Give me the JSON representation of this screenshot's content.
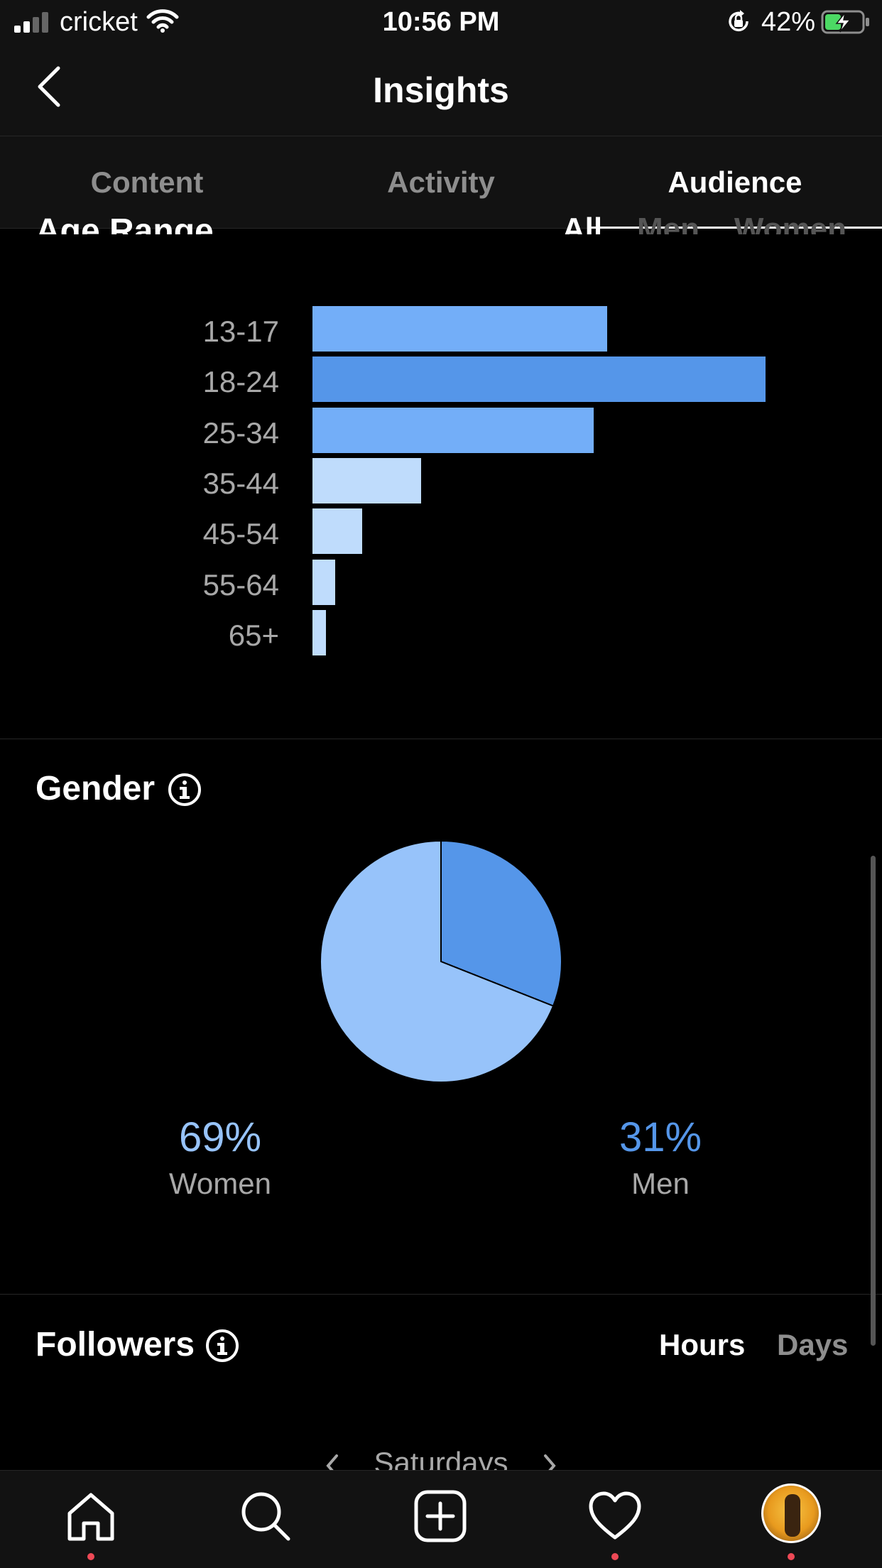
{
  "status_bar": {
    "carrier": "cricket",
    "time": "10:56 PM",
    "battery": "42%"
  },
  "header": {
    "title": "Insights"
  },
  "tabs": [
    {
      "label": "Content",
      "active": false
    },
    {
      "label": "Activity",
      "active": false
    },
    {
      "label": "Audience",
      "active": true
    }
  ],
  "age_range": {
    "title": "Age Range",
    "filters": [
      "All",
      "Men",
      "Women"
    ],
    "selected_filter": "All"
  },
  "chart_data": [
    {
      "type": "bar",
      "orientation": "horizontal",
      "categories": [
        "13-17",
        "18-24",
        "25-34",
        "35-44",
        "45-54",
        "55-64",
        "65+"
      ],
      "values": [
        65,
        100,
        62,
        24,
        11,
        5,
        3
      ],
      "colors": [
        "#73aef8",
        "#5596e9",
        "#73aef8",
        "#bfdcfc",
        "#bfdcfc",
        "#bfdcfc",
        "#bfdcfc"
      ]
    },
    {
      "type": "pie",
      "title": "Gender",
      "slices": [
        {
          "name": "Women",
          "value": 69,
          "color": "#97c3fa"
        },
        {
          "name": "Men",
          "value": 31,
          "color": "#5596e9"
        }
      ]
    }
  ],
  "gender": {
    "title": "Gender",
    "women_pct": "69%",
    "women_label": "Women",
    "men_pct": "31%",
    "men_label": "Men"
  },
  "followers": {
    "title": "Followers",
    "hours_label": "Hours",
    "days_label": "Days",
    "day_selector": "Saturdays"
  },
  "colors": {
    "accent": "#5596e9",
    "background": "#000000",
    "notification_dot": "#ed4956"
  },
  "nav": [
    "home-icon",
    "search-icon",
    "new-post-icon",
    "activity-heart-icon",
    "profile-avatar"
  ]
}
